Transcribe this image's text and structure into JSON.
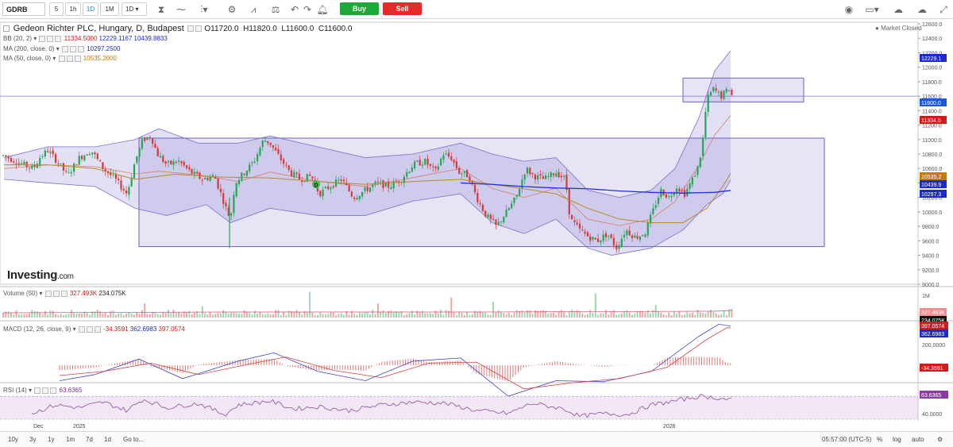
{
  "toolbar": {
    "symbol": "GDRB",
    "intervals": [
      "5",
      "1h",
      "1D",
      "1M"
    ],
    "active_interval": "1D",
    "chart_interval": "1D",
    "buy_label": "Buy",
    "sell_label": "Sell",
    "icons": [
      "candlestick-icon",
      "area-chart-icon",
      "bar-chart-icon",
      "gear-icon",
      "indicator-icon",
      "balance-icon",
      "undo-icon",
      "redo-icon",
      "alert-bell-icon",
      "camera-icon",
      "fullscreen-icon"
    ]
  },
  "legend": {
    "title": "Gedeon Richter PLC, Hungary, D, Budapest",
    "open": "O11720.0",
    "high": "H11820.0",
    "low": "L11600.0",
    "close": "C11600.0",
    "market_status": "Market Closed",
    "bb": {
      "label": "BB (20, 2)",
      "v1": "11334.5000",
      "v2": "12229.1167",
      "v3": "10439.8833"
    },
    "ma200": {
      "label": "MA (200, close, 0)",
      "v": "10297.2500"
    },
    "ma50": {
      "label": "MA (50, close, 0)",
      "v": "10535.2000"
    }
  },
  "brand": {
    "name": "Investing",
    "suffix": ".com"
  },
  "panes": {
    "volume": {
      "label": "Volume (50)",
      "v1": "327.493K",
      "v2": "234.075K",
      "tick": "1M",
      "tag1": "327.493K",
      "tag2": "234.075K"
    },
    "macd": {
      "label": "MACD (12, 26, close, 9)",
      "v1": "-34.3591",
      "v2": "362.6983",
      "v3": "397.0574",
      "ticks": [
        "200.0000"
      ],
      "tags": [
        "397.0574",
        "362.6983",
        "-34.3591"
      ]
    },
    "rsi": {
      "label": "RSI (14)",
      "v": "63.6365",
      "ticks": [
        "40.0000"
      ],
      "tag": "63.6365"
    }
  },
  "x_labels": [
    {
      "text": "Dec",
      "x": 42
    },
    {
      "text": "2025",
      "x": 92
    },
    {
      "text": "2026",
      "x": 835
    }
  ],
  "bottom_bar": {
    "ranges": [
      "10y",
      "3y",
      "1y",
      "1m",
      "7d",
      "1d"
    ],
    "goto": "Go to...",
    "time": "05:57:00 (UTC-5)",
    "percent": "%",
    "log": "log",
    "auto": "auto"
  },
  "colors": {
    "up": "#26a653",
    "down": "#d63a3a",
    "bb": "#7b74c9",
    "ma200": "#2530d8",
    "ma50": "#b88a2a",
    "rsi": "#8e4b9e"
  },
  "chart_data": {
    "type": "candlestick",
    "ylim": [
      9000,
      12600
    ],
    "y_ticks": [
      9000,
      9200,
      9400,
      9600,
      9800,
      10000,
      10200,
      10400,
      10600,
      10800,
      11000,
      11200,
      11400,
      11600,
      11800,
      12000,
      12200,
      12400,
      12600
    ],
    "price_tags": [
      {
        "value": "12229.1",
        "color": "#1b2ad0"
      },
      {
        "value": "11600.0",
        "color": "#1b5ad0"
      },
      {
        "value": "11334.5",
        "color": "#d01b1b"
      },
      {
        "value": "10535.2",
        "color": "#c87a00"
      },
      {
        "value": "10439.9",
        "color": "#1b2ad0"
      },
      {
        "value": "10297.3",
        "color": "#1b2ad0"
      }
    ],
    "path": [
      [
        0,
        10800
      ],
      [
        10,
        10750
      ],
      [
        20,
        10700
      ],
      [
        30,
        10650
      ],
      [
        42,
        10600
      ],
      [
        50,
        10750
      ],
      [
        60,
        10850
      ],
      [
        72,
        10700
      ],
      [
        85,
        10500
      ],
      [
        100,
        10750
      ],
      [
        115,
        10850
      ],
      [
        130,
        10600
      ],
      [
        145,
        10450
      ],
      [
        160,
        10250
      ],
      [
        170,
        10700
      ],
      [
        180,
        11000
      ],
      [
        190,
        11050
      ],
      [
        198,
        10800
      ],
      [
        210,
        10650
      ],
      [
        225,
        10700
      ],
      [
        240,
        10550
      ],
      [
        255,
        10450
      ],
      [
        270,
        10500
      ],
      [
        283,
        10100
      ],
      [
        290,
        9900
      ],
      [
        296,
        10400
      ],
      [
        308,
        10550
      ],
      [
        320,
        10700
      ],
      [
        332,
        11000
      ],
      [
        340,
        10950
      ],
      [
        352,
        10750
      ],
      [
        365,
        10550
      ],
      [
        378,
        10450
      ],
      [
        392,
        10500
      ],
      [
        402,
        10250
      ],
      [
        415,
        10350
      ],
      [
        430,
        10450
      ],
      [
        445,
        10200
      ],
      [
        460,
        10300
      ],
      [
        475,
        10400
      ],
      [
        490,
        10350
      ],
      [
        505,
        10450
      ],
      [
        520,
        10650
      ],
      [
        535,
        10700
      ],
      [
        548,
        10550
      ],
      [
        558,
        10800
      ],
      [
        568,
        10750
      ],
      [
        578,
        10550
      ],
      [
        590,
        10500
      ],
      [
        600,
        10200
      ],
      [
        612,
        9950
      ],
      [
        625,
        9800
      ],
      [
        638,
        10000
      ],
      [
        650,
        10200
      ],
      [
        662,
        10600
      ],
      [
        672,
        10500
      ],
      [
        685,
        10450
      ],
      [
        700,
        10550
      ],
      [
        712,
        10450
      ],
      [
        718,
        9900
      ],
      [
        730,
        9750
      ],
      [
        742,
        9650
      ],
      [
        752,
        9600
      ],
      [
        765,
        9700
      ],
      [
        776,
        9500
      ],
      [
        788,
        9750
      ],
      [
        800,
        9650
      ],
      [
        812,
        9700
      ],
      [
        820,
        9950
      ],
      [
        832,
        10300
      ],
      [
        842,
        10200
      ],
      [
        852,
        10350
      ],
      [
        862,
        10250
      ],
      [
        872,
        10450
      ],
      [
        880,
        10650
      ],
      [
        885,
        11000
      ],
      [
        890,
        11550
      ],
      [
        898,
        11700
      ],
      [
        908,
        11600
      ],
      [
        918,
        11700
      ],
      [
        922,
        11600
      ]
    ],
    "ma200": [
      [
        580,
        10400
      ],
      [
        620,
        10380
      ],
      [
        660,
        10350
      ],
      [
        700,
        10330
      ],
      [
        740,
        10320
      ],
      [
        780,
        10290
      ],
      [
        820,
        10270
      ],
      [
        860,
        10260
      ],
      [
        900,
        10270
      ],
      [
        920,
        10297
      ]
    ],
    "ma50": [
      [
        5,
        10650
      ],
      [
        60,
        10650
      ],
      [
        120,
        10600
      ],
      [
        170,
        10450
      ],
      [
        220,
        10520
      ],
      [
        280,
        10480
      ],
      [
        340,
        10470
      ],
      [
        400,
        10420
      ],
      [
        460,
        10380
      ],
      [
        520,
        10420
      ],
      [
        580,
        10450
      ],
      [
        620,
        10380
      ],
      [
        660,
        10320
      ],
      [
        700,
        10250
      ],
      [
        740,
        10050
      ],
      [
        780,
        9900
      ],
      [
        820,
        9850
      ],
      [
        860,
        9850
      ],
      [
        890,
        10050
      ],
      [
        910,
        10350
      ],
      [
        920,
        10535
      ]
    ],
    "bb_upper": [
      [
        5,
        10750
      ],
      [
        60,
        10900
      ],
      [
        120,
        10900
      ],
      [
        170,
        11000
      ],
      [
        200,
        11150
      ],
      [
        250,
        10950
      ],
      [
        300,
        10950
      ],
      [
        340,
        11050
      ],
      [
        400,
        10900
      ],
      [
        460,
        10750
      ],
      [
        520,
        10800
      ],
      [
        580,
        10950
      ],
      [
        620,
        10800
      ],
      [
        660,
        10700
      ],
      [
        700,
        10750
      ],
      [
        740,
        10300
      ],
      [
        780,
        10200
      ],
      [
        820,
        10300
      ],
      [
        850,
        10600
      ],
      [
        880,
        11300
      ],
      [
        900,
        11950
      ],
      [
        920,
        12229
      ]
    ],
    "bb_lower": [
      [
        5,
        10450
      ],
      [
        60,
        10400
      ],
      [
        120,
        10350
      ],
      [
        170,
        10050
      ],
      [
        210,
        9950
      ],
      [
        260,
        10100
      ],
      [
        290,
        9850
      ],
      [
        340,
        10050
      ],
      [
        400,
        9950
      ],
      [
        460,
        9950
      ],
      [
        520,
        10150
      ],
      [
        580,
        10250
      ],
      [
        620,
        9850
      ],
      [
        660,
        9700
      ],
      [
        700,
        9900
      ],
      [
        740,
        9500
      ],
      [
        770,
        9400
      ],
      [
        820,
        9500
      ],
      [
        860,
        9750
      ],
      [
        890,
        10100
      ],
      [
        910,
        10250
      ],
      [
        920,
        10439
      ]
    ],
    "boxes": [
      {
        "x1": 175,
        "x2": 1038,
        "y1": 9520,
        "y2": 11020
      },
      {
        "x1": 860,
        "x2": 1012,
        "y1": 11520,
        "y2": 11850
      }
    ],
    "hline": 11600,
    "marker": {
      "label": "D",
      "x": 398,
      "y": 10380
    },
    "volume_spikes": [
      [
        390,
        0.9
      ],
      [
        568,
        0.7
      ],
      [
        750,
        0.85
      ],
      [
        620,
        0.55
      ],
      [
        182,
        0.5
      ],
      [
        255,
        0.4
      ],
      [
        475,
        0.5
      ],
      [
        825,
        0.45
      ],
      [
        920,
        0.3
      ]
    ],
    "macd_line": [
      [
        75,
        -150
      ],
      [
        120,
        -90
      ],
      [
        175,
        60
      ],
      [
        230,
        -130
      ],
      [
        300,
        40
      ],
      [
        345,
        120
      ],
      [
        400,
        -60
      ],
      [
        460,
        -150
      ],
      [
        520,
        40
      ],
      [
        580,
        70
      ],
      [
        640,
        -300
      ],
      [
        700,
        -150
      ],
      [
        760,
        -160
      ],
      [
        820,
        -60
      ],
      [
        880,
        280
      ],
      [
        905,
        397
      ],
      [
        920,
        380
      ]
    ],
    "macd_signal": [
      [
        75,
        -100
      ],
      [
        130,
        -60
      ],
      [
        190,
        20
      ],
      [
        250,
        -90
      ],
      [
        320,
        20
      ],
      [
        360,
        80
      ],
      [
        420,
        -50
      ],
      [
        480,
        -120
      ],
      [
        540,
        20
      ],
      [
        600,
        30
      ],
      [
        660,
        -230
      ],
      [
        720,
        -170
      ],
      [
        780,
        -130
      ],
      [
        840,
        -20
      ],
      [
        890,
        250
      ],
      [
        915,
        362
      ],
      [
        920,
        362
      ]
    ],
    "rsi": [
      [
        40,
        40
      ],
      [
        70,
        55
      ],
      [
        100,
        50
      ],
      [
        130,
        60
      ],
      [
        160,
        45
      ],
      [
        180,
        65
      ],
      [
        210,
        50
      ],
      [
        250,
        58
      ],
      [
        283,
        38
      ],
      [
        300,
        55
      ],
      [
        340,
        62
      ],
      [
        370,
        48
      ],
      [
        400,
        52
      ],
      [
        440,
        45
      ],
      [
        480,
        55
      ],
      [
        520,
        60
      ],
      [
        560,
        58
      ],
      [
        600,
        45
      ],
      [
        640,
        40
      ],
      [
        670,
        58
      ],
      [
        710,
        48
      ],
      [
        730,
        35
      ],
      [
        760,
        40
      ],
      [
        790,
        38
      ],
      [
        820,
        55
      ],
      [
        850,
        62
      ],
      [
        880,
        70
      ],
      [
        900,
        68
      ],
      [
        920,
        63.6
      ]
    ]
  }
}
